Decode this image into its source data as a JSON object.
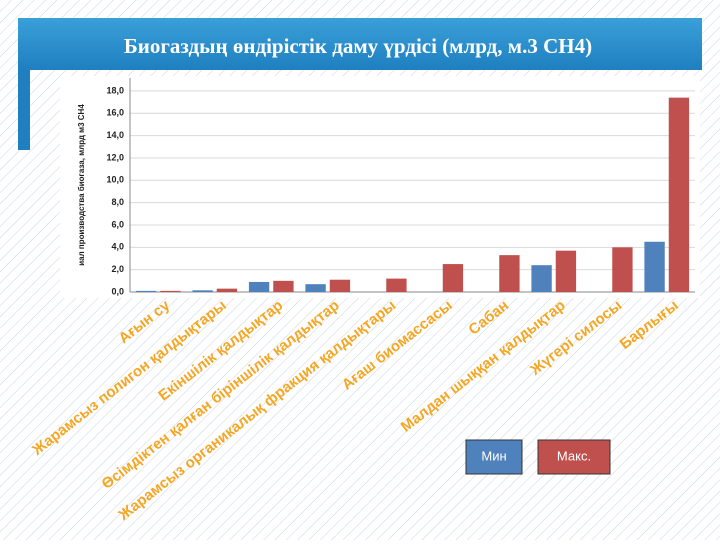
{
  "chart_data": {
    "type": "bar",
    "title": "Биогаздың  өндірістік даму үрдісі  (млрд, м.3 CH4)",
    "y_label": "иал производства биогаза, млрд м3 CH4",
    "categories": [
      "Ағын су",
      "Жарамсыз полигон қалдықтары",
      "Екіншілік қалдықтар",
      "Өсімдіктен қалған біріншілік қалдықтар",
      "Жарамсыз органикалық фракция қалдықтары",
      "Ағаш биомассасы",
      "Сабан",
      "Малдан шыққан қалдықтар",
      "Жүгері силосы",
      "Барлығы"
    ],
    "series": [
      {
        "name": "Мин",
        "color": "#4f81bd",
        "values": [
          0.1,
          0.15,
          0.9,
          0.7,
          null,
          null,
          null,
          2.4,
          null,
          4.5
        ]
      },
      {
        "name": "Макс.",
        "color": "#c0504d",
        "values": [
          0.1,
          0.3,
          1.0,
          1.1,
          1.2,
          2.5,
          3.3,
          3.7,
          4.0,
          17.4
        ]
      }
    ],
    "ylim": [
      0,
      18.8
    ],
    "yticks": [
      {
        "value": 0,
        "label": "0,0"
      },
      {
        "value": 2,
        "label": "2,0"
      },
      {
        "value": 4,
        "label": "4,0"
      },
      {
        "value": 6,
        "label": "6,0"
      },
      {
        "value": 8,
        "label": "8,0"
      },
      {
        "value": 10,
        "label": "10,0"
      },
      {
        "value": 12,
        "label": "12,0"
      },
      {
        "value": 14,
        "label": "14,0"
      },
      {
        "value": 16,
        "label": "16,0"
      },
      {
        "value": 18,
        "label": "18,0"
      }
    ],
    "grid": true
  }
}
